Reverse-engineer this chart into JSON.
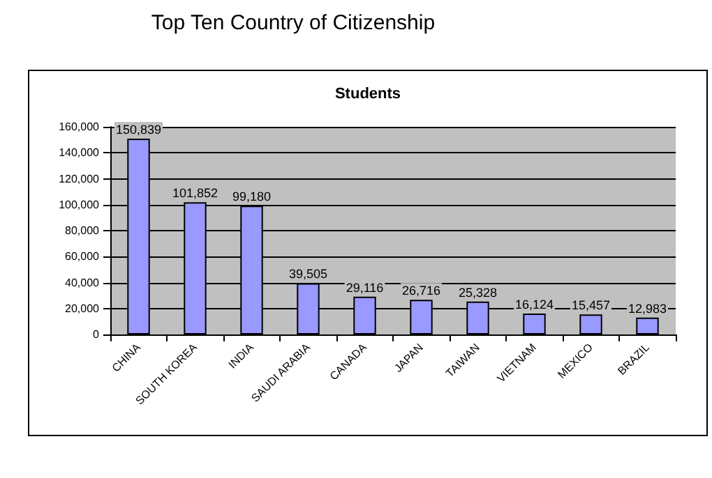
{
  "chart_data": {
    "type": "bar",
    "title": "Top Ten Country of Citizenship",
    "subtitle": "Students",
    "categories": [
      "CHINA",
      "SOUTH KOREA",
      "INDIA",
      "SAUDI ARABIA",
      "CANADA",
      "JAPAN",
      "TAIWAN",
      "VIETNAM",
      "MEXICO",
      "BRAZIL"
    ],
    "values": [
      150839,
      101852,
      99180,
      39505,
      29116,
      26716,
      25328,
      16124,
      15457,
      12983
    ],
    "value_labels": [
      "150,839",
      "101,852",
      "99,180",
      "39,505",
      "29,116",
      "26,716",
      "25,328",
      "16,124",
      "15,457",
      "12,983"
    ],
    "color": "#9999ff",
    "ylim": [
      0,
      160000
    ],
    "yticks": [
      {
        "value": 0,
        "label": "0"
      },
      {
        "value": 20000,
        "label": "20,000"
      },
      {
        "value": 40000,
        "label": "40,000"
      },
      {
        "value": 60000,
        "label": "60,000"
      },
      {
        "value": 80000,
        "label": "80,000"
      },
      {
        "value": 100000,
        "label": "100,000"
      },
      {
        "value": 120000,
        "label": "120,000"
      },
      {
        "value": 140000,
        "label": "140,000"
      },
      {
        "value": 160000,
        "label": "160,000"
      }
    ],
    "grid": "y"
  }
}
